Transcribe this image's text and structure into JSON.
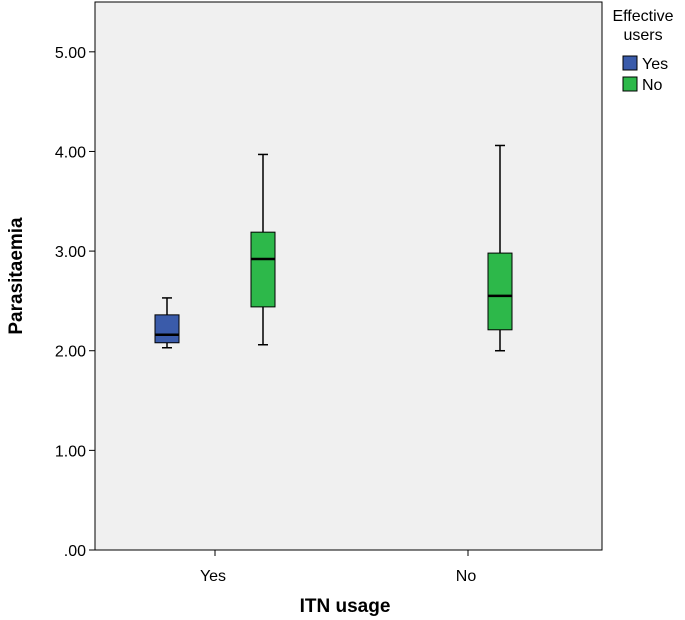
{
  "chart_data": {
    "type": "boxplot",
    "xlabel": "ITN usage",
    "ylabel": "Parasitaemia",
    "ylim": [
      0,
      5.5
    ],
    "yticks": [
      ".00",
      "1.00",
      "2.00",
      "3.00",
      "4.00",
      "5.00"
    ],
    "ytick_values": [
      0,
      1,
      2,
      3,
      4,
      5
    ],
    "categories": [
      "Yes",
      "No"
    ],
    "legend": {
      "title": "Effective users",
      "title_lines": [
        "Effective",
        "users"
      ],
      "position": "top-right-outside",
      "entries": [
        {
          "name": "Yes",
          "color": "#3a5baa"
        },
        {
          "name": "No",
          "color": "#2db84a"
        }
      ]
    },
    "series": [
      {
        "name": "Yes",
        "color": "#3a5baa",
        "boxes": [
          {
            "category": "Yes",
            "min": 2.03,
            "q1": 2.08,
            "median": 2.16,
            "q3": 2.36,
            "max": 2.53
          }
        ]
      },
      {
        "name": "No",
        "color": "#2db84a",
        "boxes": [
          {
            "category": "Yes",
            "min": 2.06,
            "q1": 2.44,
            "median": 2.92,
            "q3": 3.19,
            "max": 3.97
          },
          {
            "category": "No",
            "min": 2.0,
            "q1": 2.21,
            "median": 2.55,
            "q3": 2.98,
            "max": 4.06
          }
        ]
      }
    ],
    "grid": false,
    "background": "#f0f0f0"
  }
}
